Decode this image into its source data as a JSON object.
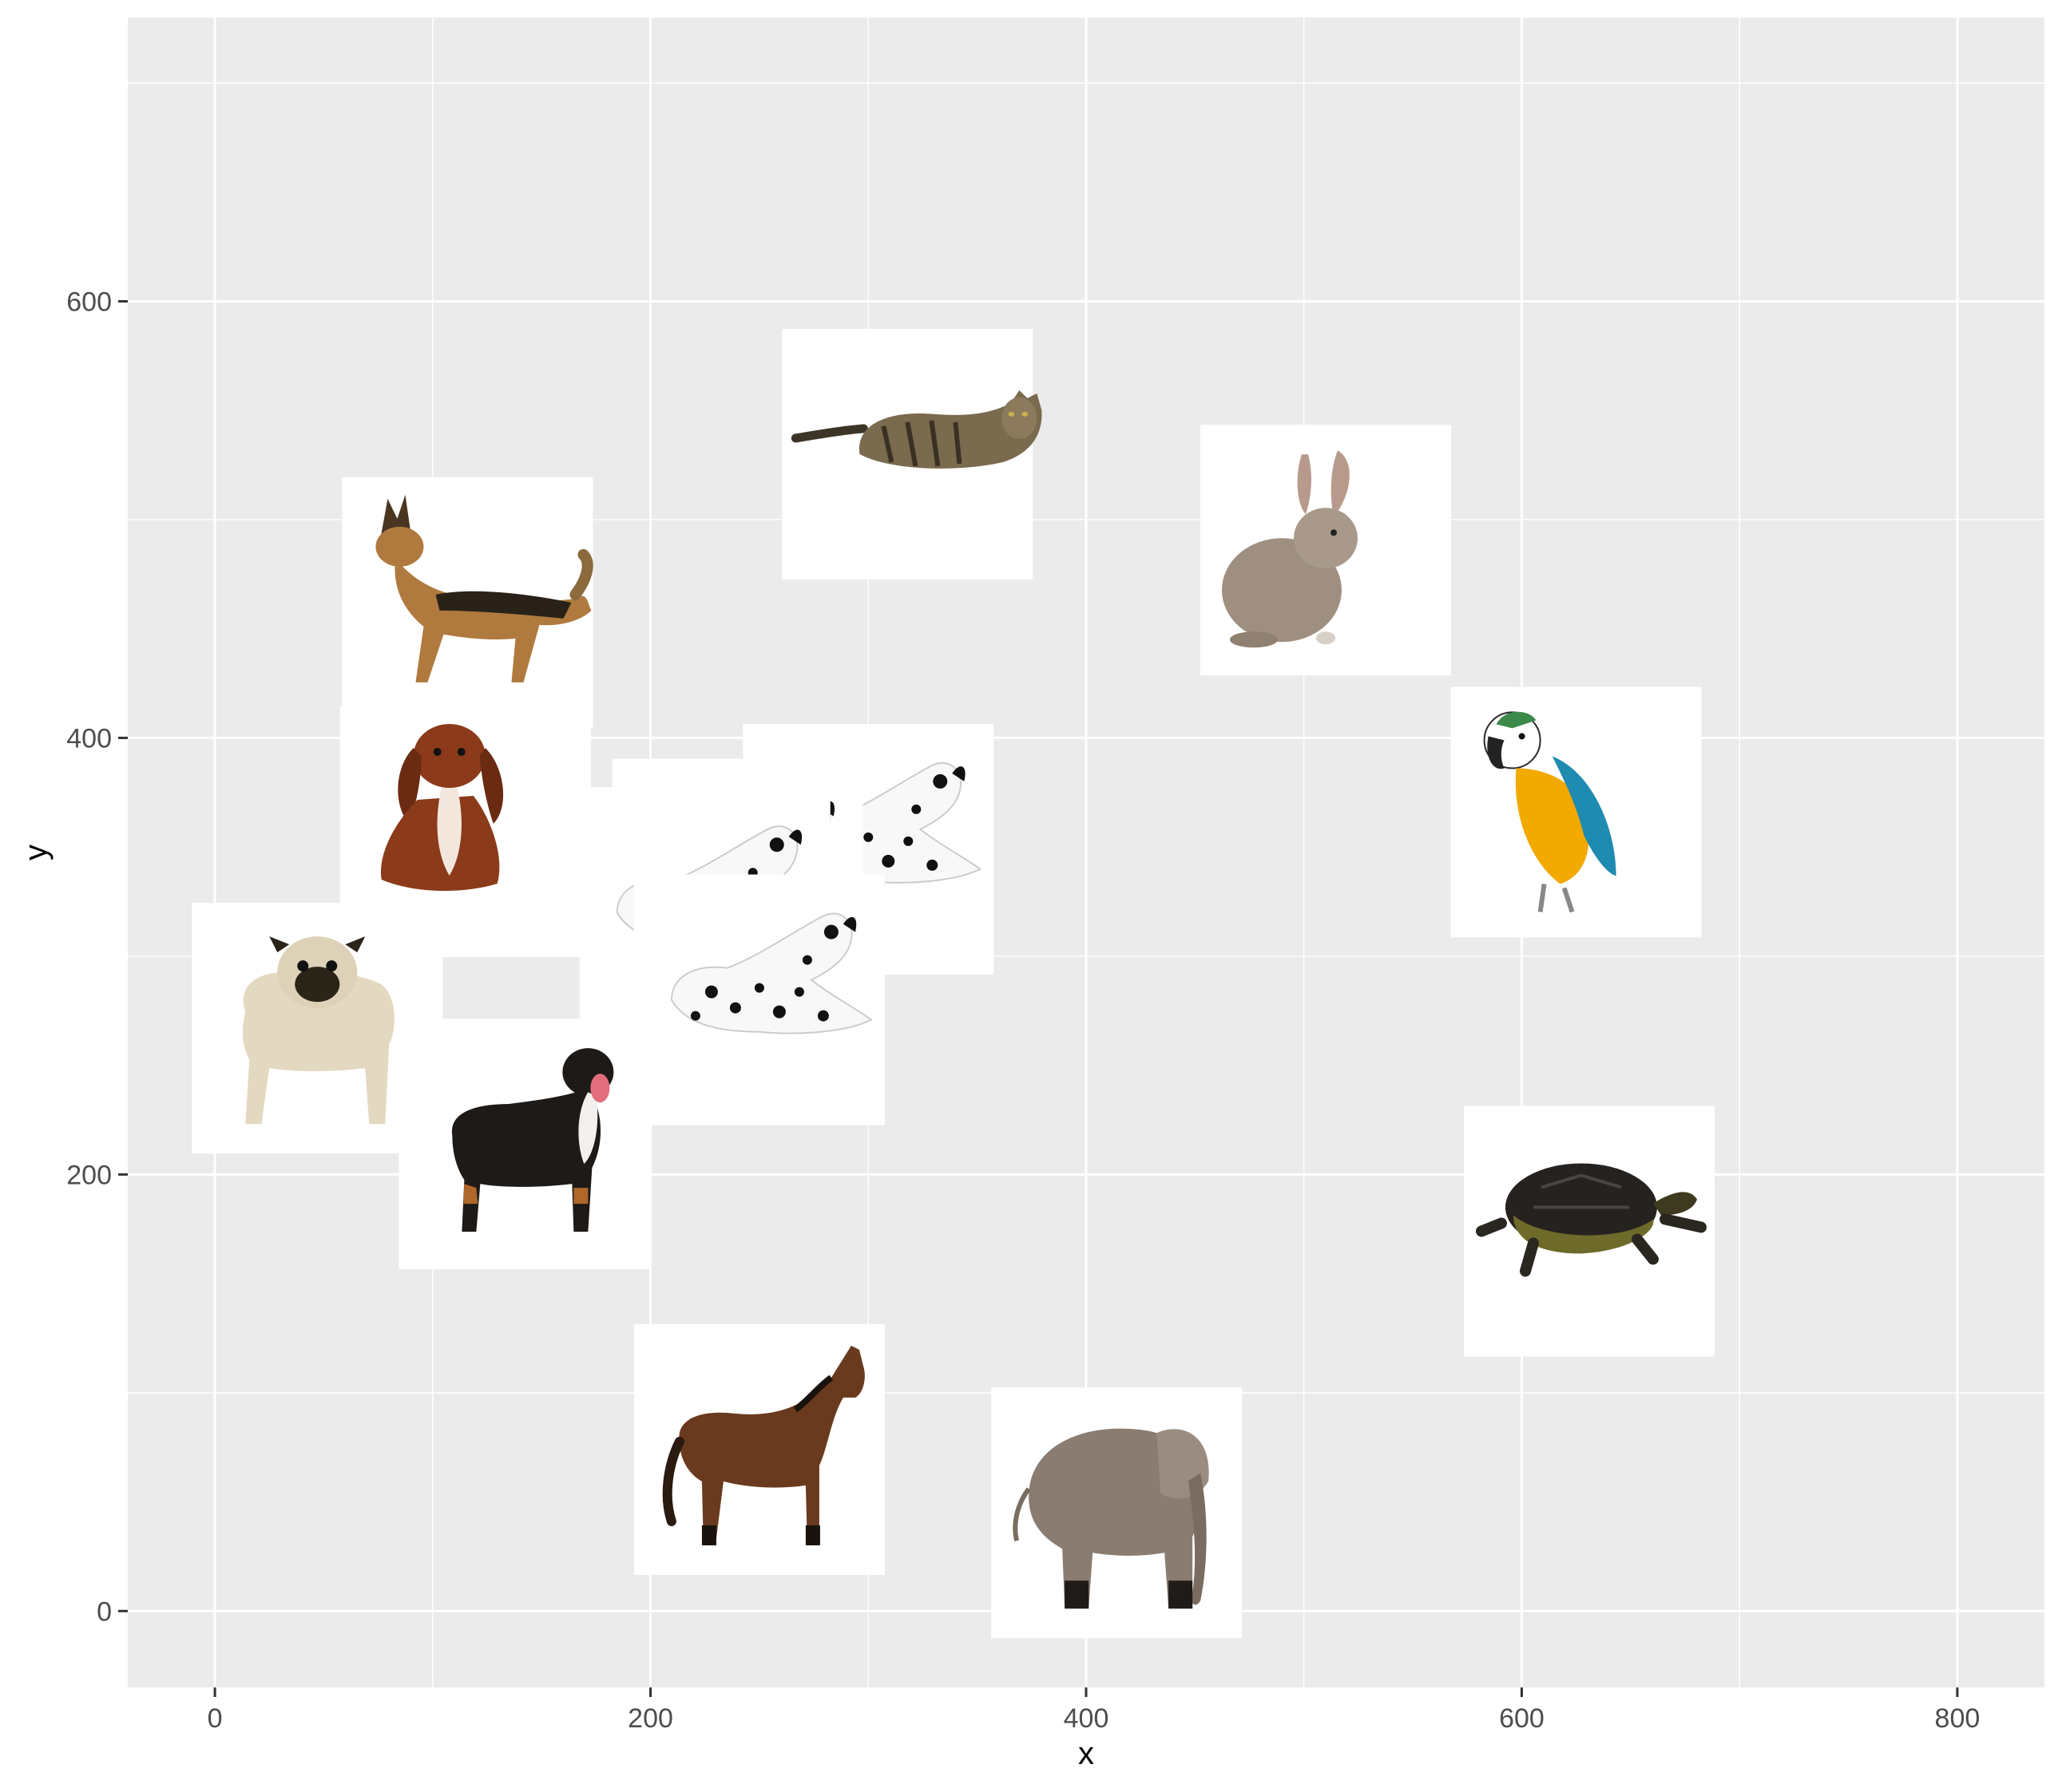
{
  "chart_data": {
    "type": "scatter",
    "title": "",
    "xlabel": "x",
    "ylabel": "y",
    "xlim": [
      -40,
      840
    ],
    "ylim": [
      -35,
      730
    ],
    "x_ticks": [
      0,
      200,
      400,
      600,
      800
    ],
    "y_ticks": [
      0,
      200,
      400,
      600
    ],
    "x_tick_labels": [
      "0",
      "200",
      "400",
      "600",
      "800"
    ],
    "y_tick_labels": [
      "0",
      "200",
      "400",
      "600"
    ],
    "grid": true,
    "background": "#ebebeb",
    "grid_color": "#ffffff",
    "points": [
      {
        "x": 318,
        "y": 530,
        "icon": "cat-icon"
      },
      {
        "x": 510,
        "y": 486,
        "icon": "rabbit-icon"
      },
      {
        "x": 116,
        "y": 462,
        "icon": "german-shepherd-icon"
      },
      {
        "x": 625,
        "y": 366,
        "icon": "parrot-icon"
      },
      {
        "x": 115,
        "y": 357,
        "icon": "spaniel-icon"
      },
      {
        "x": 300,
        "y": 349,
        "icon": "dalmatian-icon"
      },
      {
        "x": 240,
        "y": 333,
        "icon": "dalmatian-icon"
      },
      {
        "x": 225,
        "y": 320,
        "icon": "dalmatian-icon"
      },
      {
        "x": 250,
        "y": 280,
        "icon": "dalmatian-icon"
      },
      {
        "x": 47,
        "y": 267,
        "icon": "pug-icon"
      },
      {
        "x": 142,
        "y": 214,
        "icon": "bernese-dog-icon"
      },
      {
        "x": 631,
        "y": 174,
        "icon": "turtle-icon"
      },
      {
        "x": 250,
        "y": 74,
        "icon": "horse-icon"
      },
      {
        "x": 414,
        "y": 45,
        "icon": "elephant-icon"
      }
    ]
  }
}
